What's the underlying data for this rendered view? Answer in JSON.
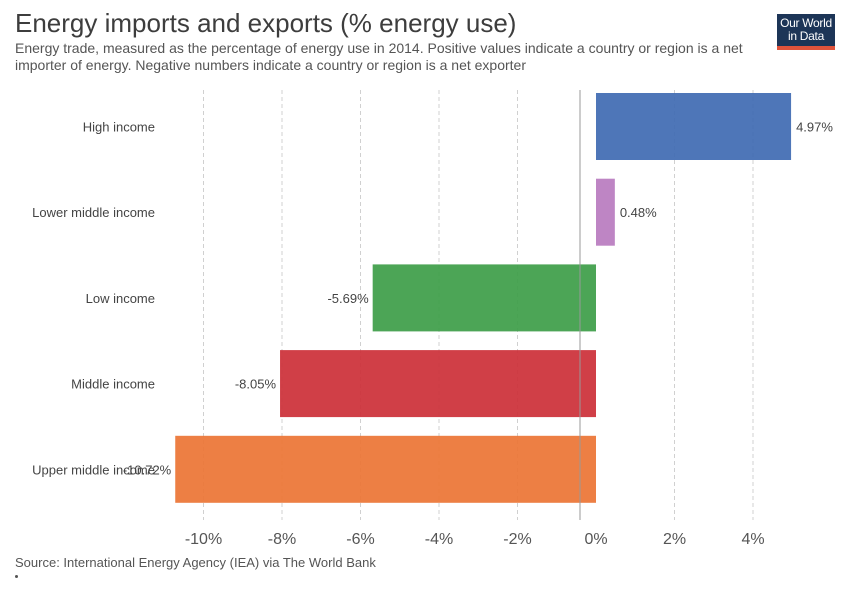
{
  "header": {
    "title": "Energy imports and exports (% energy use)",
    "subtitle": "Energy trade, measured as the percentage of energy use in 2014. Positive values indicate a country or region is a net importer of energy. Negative numbers indicate a country or region is a net exporter"
  },
  "logo": {
    "line1": "Our World",
    "line2": "in Data",
    "bg_color": "#1d3557",
    "accent_color": "#e0533b"
  },
  "footer": {
    "source": "Source: International Energy Agency (IEA) via The World Bank"
  },
  "chart_data": {
    "type": "bar",
    "orientation": "horizontal",
    "year": 2014,
    "unit": "%",
    "categories": [
      "High income",
      "Lower middle income",
      "Low income",
      "Middle income",
      "Upper middle income"
    ],
    "values": [
      4.97,
      0.48,
      -5.69,
      -8.05,
      -10.72
    ],
    "value_labels": [
      "4.97%",
      "0.48%",
      "-5.69%",
      "-8.05%",
      "-10.72%"
    ],
    "colors": [
      "#3f6ab2",
      "#b87bbf",
      "#3d9d48",
      "#cc2f37",
      "#ec7434"
    ],
    "xticks": [
      -10,
      -8,
      -6,
      -4,
      -2,
      0,
      2,
      4
    ],
    "xtick_labels": [
      "-10%",
      "-8%",
      "-6%",
      "-4%",
      "-2%",
      "0%",
      "2%",
      "4%"
    ],
    "xlim": [
      -11,
      5
    ],
    "grid": "vertical dashed"
  }
}
